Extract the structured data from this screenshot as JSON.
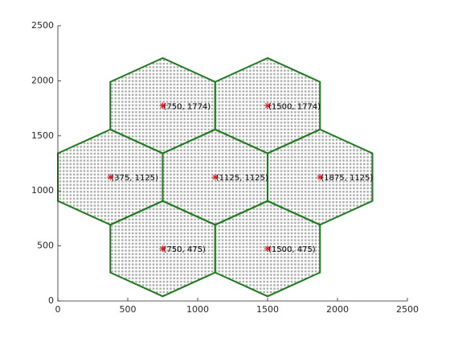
{
  "chart_data": {
    "type": "scatter",
    "x": [
      750,
      1500,
      375,
      1125,
      1875,
      750,
      1500
    ],
    "series": [
      {
        "color": "#e8141b",
        "values": [
          1774,
          1774,
          1125,
          1125,
          1125,
          475,
          475
        ]
      }
    ],
    "labels": [
      "(750, 1774)",
      "(1500, 1774)",
      "(375, 1125)",
      "(1125, 1125)",
      "(1875, 1125)",
      "(750, 475)",
      "(1500, 475)"
    ],
    "cell_color": "#1f7a1f",
    "xlim": [
      0,
      2500
    ],
    "ylim": [
      0,
      2500
    ],
    "xticks": [
      0,
      500,
      1000,
      1500,
      2000,
      2500
    ],
    "yticks": [
      0,
      500,
      1000,
      1500,
      2000,
      2500
    ]
  }
}
